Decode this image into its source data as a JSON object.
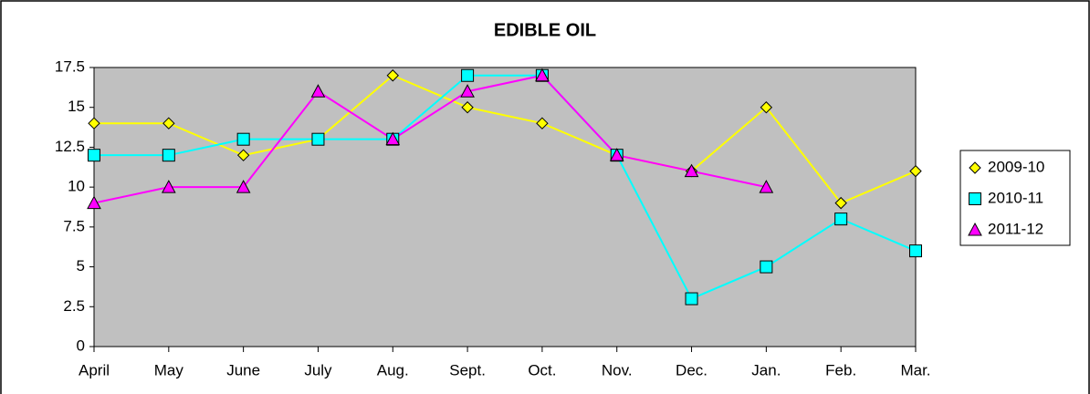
{
  "chart_data": {
    "type": "line",
    "title": "EDIBLE OIL",
    "categories": [
      "April",
      "May",
      "June",
      "July",
      "Aug.",
      "Sept.",
      "Oct.",
      "Nov.",
      "Dec.",
      "Jan.",
      "Feb.",
      "Mar."
    ],
    "series": [
      {
        "name": "2009-10",
        "color": "#ffff00",
        "marker": "diamond",
        "values": [
          14,
          14,
          12,
          13,
          17,
          15,
          14,
          12,
          11,
          15,
          9,
          11
        ]
      },
      {
        "name": "2010-11",
        "color": "#00ffff",
        "marker": "square",
        "values": [
          12,
          12,
          13,
          13,
          13,
          17,
          17,
          12,
          3,
          5,
          8,
          6
        ]
      },
      {
        "name": "2011-12",
        "color": "#ff00ff",
        "marker": "triangle",
        "values": [
          9,
          10,
          10,
          16,
          13,
          16,
          17,
          12,
          11,
          10,
          null,
          null
        ]
      }
    ],
    "ylim": [
      0,
      17.5
    ],
    "yticks": [
      0,
      2.5,
      5,
      7.5,
      10,
      12.5,
      15,
      17.5
    ],
    "grid": false,
    "legend": "right",
    "plot_background": "#c0c0c0"
  }
}
